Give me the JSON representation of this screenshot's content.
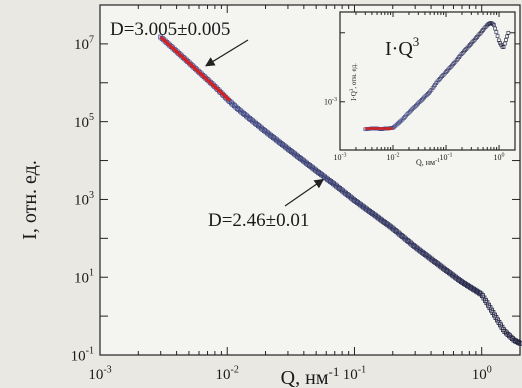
{
  "chart_data": [
    {
      "type": "scatter",
      "title": "",
      "xlabel_base": "Q, нм",
      "xlabel_exp": "-1",
      "ylabel": "I, отн. ед.",
      "xscale": "log",
      "yscale": "log",
      "xlim": [
        0.001,
        2
      ],
      "ylim": [
        0.1,
        100000000
      ],
      "x_ticks": [
        {
          "base": "10",
          "exp": "-3",
          "value": 0.001
        },
        {
          "base": "10",
          "exp": "-2",
          "value": 0.01
        },
        {
          "base": "10",
          "exp": "-1",
          "value": 0.1
        },
        {
          "base": "10",
          "exp": "0",
          "value": 1
        }
      ],
      "y_ticks": [
        {
          "base": "10",
          "exp": "-1",
          "value": 0.1
        },
        {
          "base": "10",
          "exp": "1",
          "value": 10
        },
        {
          "base": "10",
          "exp": "3",
          "value": 1000
        },
        {
          "base": "10",
          "exp": "5",
          "value": 100000
        },
        {
          "base": "10",
          "exp": "7",
          "value": 10000000
        }
      ],
      "series": [
        {
          "name": "",
          "marker": "open-square",
          "color": "#3c4f8c",
          "x": [
            0.003,
            0.004,
            0.005,
            0.006,
            0.007,
            0.008,
            0.01,
            0.012,
            0.015,
            0.02,
            0.03,
            0.05,
            0.07,
            0.1,
            0.15,
            0.2,
            0.3,
            0.5,
            0.7,
            0.9,
            1.0,
            1.1,
            1.3,
            1.5,
            1.8,
            2.0
          ],
          "y": [
            15000000,
            6400000,
            3300000,
            1900000,
            1200000,
            800000,
            380000,
            220000,
            120000,
            56000,
            20000,
            5500,
            2400,
            950,
            360,
            180,
            60,
            17,
            7.5,
            4.5,
            3.6,
            2.2,
            0.9,
            0.42,
            0.24,
            0.2
          ]
        },
        {
          "name": "",
          "type": "fit-line",
          "color": "#d42222",
          "x": [
            0.003,
            0.0105
          ],
          "y": [
            15000000,
            350000
          ]
        }
      ],
      "annotations": [
        {
          "text": "D=3.005±0.005",
          "target": {
            "x": 0.006,
            "y": 2000000
          }
        },
        {
          "text": "D=2.46±0.01",
          "target": {
            "x": 0.05,
            "y": 5000
          }
        }
      ]
    },
    {
      "type": "scatter",
      "title": "I·Q",
      "title_exp": "3",
      "xlabel": "Q, нм",
      "xlabel_exp": "-1",
      "ylabel": "I·Q",
      "ylabel_tail": ", отн. ед.",
      "ylabel_exp": "3",
      "xscale": "log",
      "yscale": "log",
      "xlim": [
        0.001,
        2
      ],
      "ylim": [
        0.0002,
        0.02
      ],
      "x_ticks": [
        {
          "base": "10",
          "exp": "-3",
          "value": 0.001
        },
        {
          "base": "10",
          "exp": "-2",
          "value": 0.01
        },
        {
          "base": "10",
          "exp": "-1",
          "value": 0.1
        },
        {
          "base": "10",
          "exp": "0",
          "value": 1
        }
      ],
      "y_ticks": [
        {
          "base": "10",
          "exp": "-3",
          "value": 0.001
        }
      ],
      "series": [
        {
          "name": "",
          "marker": "open-square",
          "color": "#3c4f8c",
          "x": [
            0.003,
            0.004,
            0.005,
            0.006,
            0.007,
            0.008,
            0.01,
            0.015,
            0.02,
            0.03,
            0.05,
            0.07,
            0.1,
            0.15,
            0.2,
            0.3,
            0.4,
            0.5,
            0.6,
            0.7,
            0.8,
            0.9,
            1.0,
            1.2,
            1.5
          ],
          "y": [
            0.0004,
            0.00041,
            0.00041,
            0.0004,
            0.00041,
            0.00041,
            0.00042,
            0.00055,
            0.0007,
            0.00095,
            0.0014,
            0.002,
            0.0027,
            0.0038,
            0.005,
            0.007,
            0.009,
            0.011,
            0.013,
            0.014,
            0.013,
            0.01,
            0.0075,
            0.006,
            0.01
          ]
        },
        {
          "name": "",
          "type": "fit-line",
          "color": "#d42222",
          "x": [
            0.003,
            0.01
          ],
          "y": [
            0.00041,
            0.00041
          ]
        }
      ]
    }
  ]
}
